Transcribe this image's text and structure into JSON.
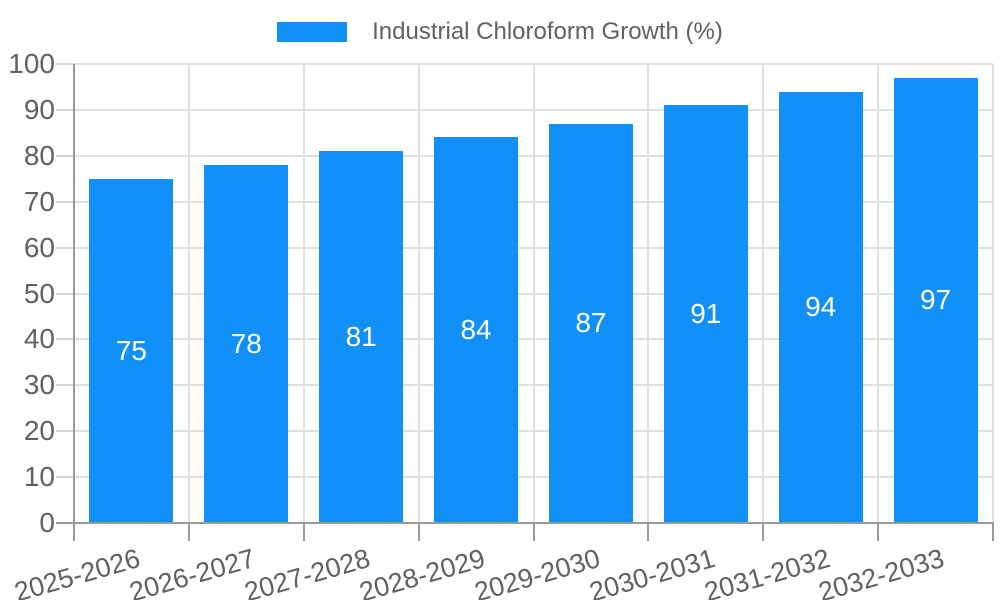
{
  "chart_data": {
    "type": "bar",
    "title": "Industrial Chloroform Growth (%)",
    "legend": [
      {
        "label": "Industrial Chloroform Growth (%)",
        "color": "#1090f8"
      }
    ],
    "legend_position": "top-center",
    "categories": [
      "2025-2026",
      "2026-2027",
      "2027-2028",
      "2028-2029",
      "2029-2030",
      "2030-2031",
      "2031-2032",
      "2032-2033"
    ],
    "series": [
      {
        "name": "Industrial Chloroform Growth (%)",
        "values": [
          75,
          78,
          81,
          84,
          87,
          91,
          94,
          97
        ]
      }
    ],
    "value_labels": [
      "75",
      "78",
      "81",
      "84",
      "87",
      "91",
      "94",
      "97"
    ],
    "y_tick_labels": [
      "0",
      "10",
      "20",
      "30",
      "40",
      "50",
      "60",
      "70",
      "80",
      "90",
      "100"
    ],
    "xlabel": "",
    "ylabel": "",
    "ylim": [
      0,
      100
    ],
    "ytick_step": 10,
    "grid": true,
    "x_tick_rotation_deg": -16,
    "value_label_position": "inside-center"
  },
  "colors": {
    "bar": "#1090f8",
    "grid": "#e0e0e0",
    "y_tick": "#d6d6d6",
    "axis": "#999999",
    "text": "#616161",
    "value_label": "#ffffff",
    "background": "#ffffff"
  }
}
